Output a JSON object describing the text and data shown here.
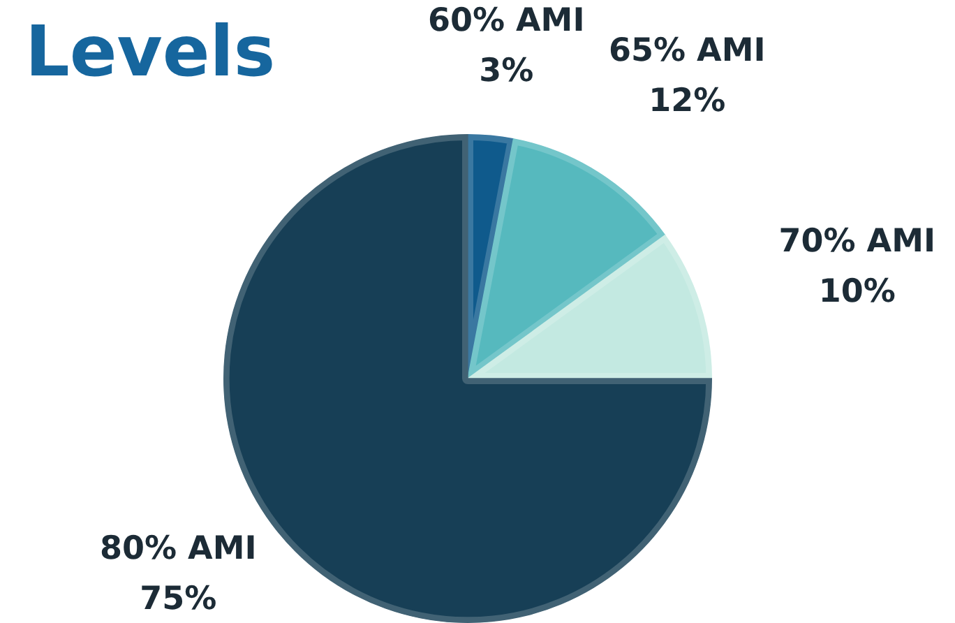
{
  "chart_data": {
    "type": "pie",
    "title": "Levels",
    "categories": [
      "60% AMI",
      "65% AMI",
      "70% AMI",
      "80% AMI"
    ],
    "values": [
      3,
      12,
      10,
      75
    ],
    "value_labels": [
      "3%",
      "12%",
      "10%",
      "75%"
    ],
    "colors": [
      "#0f5a8c",
      "#56b9be",
      "#c3e9e1",
      "#173f56"
    ],
    "legend": false
  }
}
